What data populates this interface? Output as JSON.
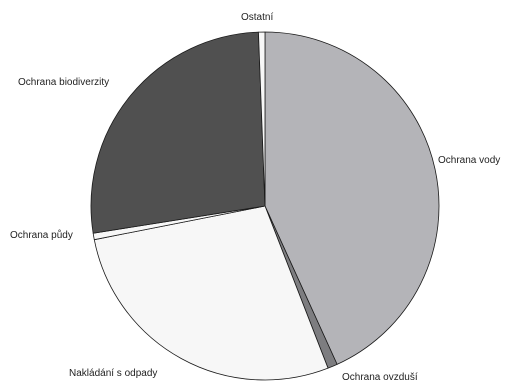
{
  "chart_data": {
    "type": "pie",
    "start": "top",
    "direction": "clockwise",
    "slices": [
      {
        "label": "Ochrana vody",
        "value": 43.2,
        "color": "#b4b4b8"
      },
      {
        "label": "Ochrana ovzduší",
        "value": 0.9,
        "color": "#7d7d80"
      },
      {
        "label": "Nakládání s odpady",
        "value": 27.8,
        "color": "#f7f7f7"
      },
      {
        "label": "Ochrana půdy",
        "value": 0.6,
        "color": "#f7f7f7"
      },
      {
        "label": "Ochrana biodiverzity",
        "value": 26.9,
        "color": "#505050"
      },
      {
        "label": "Ostatní",
        "value": 0.6,
        "color": "#f7f7f7"
      }
    ]
  }
}
